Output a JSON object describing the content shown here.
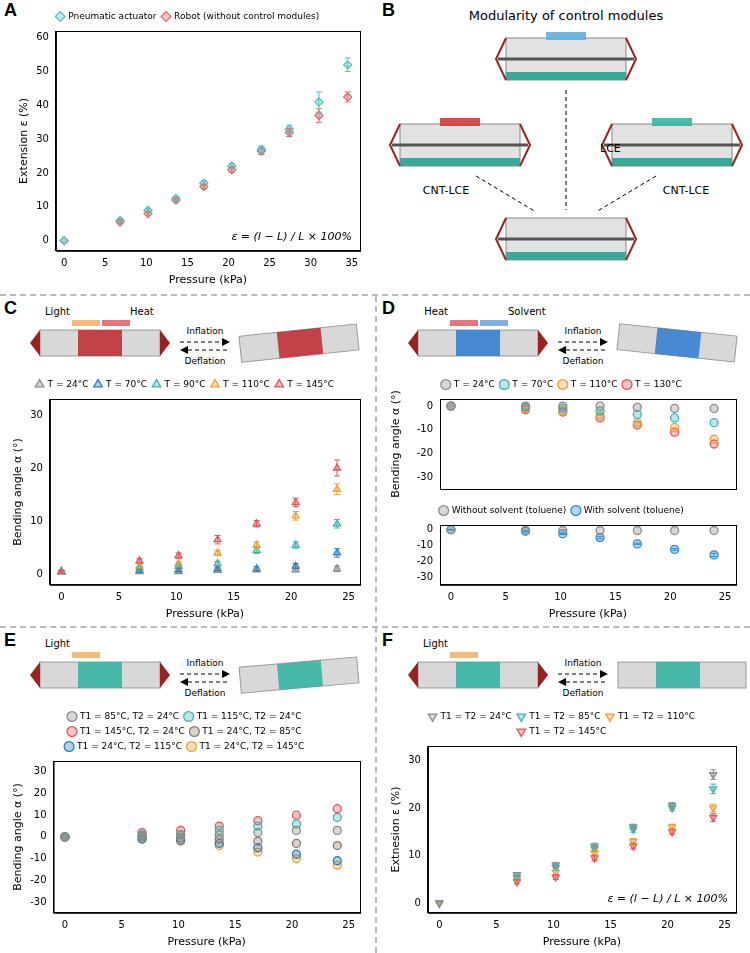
{
  "chart_data": [
    {
      "type": "scatter",
      "panel_label": "A",
      "x_label": "Pressure (kPa)",
      "y_label": "Extension ε (%)",
      "annotations": [
        "ε = (l − L) / L × 100%"
      ],
      "x": [
        0,
        6.8,
        10.2,
        13.6,
        17,
        20.4,
        24,
        27.4,
        31,
        34.5
      ],
      "xlim": [
        -1,
        36
      ],
      "xticks": [
        0,
        5,
        10,
        15,
        20,
        25,
        30,
        35
      ],
      "ylim": [
        -3,
        62
      ],
      "yticks": [
        0,
        10,
        20,
        30,
        40,
        50,
        60
      ],
      "grid": false,
      "legend": "top",
      "series": [
        {
          "name": "Pneumatic actuator",
          "color": "#4fc3c8",
          "marker": "diamond",
          "values": [
            0,
            6,
            9,
            12.5,
            17,
            22,
            27,
            33,
            41,
            52
          ],
          "errors": [
            0,
            0.5,
            0.5,
            0.5,
            0.7,
            0.8,
            1,
            1.2,
            3,
            2
          ]
        },
        {
          "name": "Robot (without control modules)",
          "color": "#e86a6a",
          "marker": "diamond",
          "values": [
            0,
            5.5,
            8,
            12,
            16,
            21,
            26.5,
            32,
            37,
            42.5
          ],
          "errors": [
            0,
            0.5,
            0.5,
            0.5,
            0.6,
            0.8,
            1,
            1.2,
            2,
            1.5
          ]
        }
      ]
    },
    {
      "type": "scatter",
      "panel_label": "C",
      "schematic_labels": [
        "Light",
        "Heat"
      ],
      "arrow_labels": [
        "Inflation",
        "Deflation"
      ],
      "x_label": "Pressure (kPa)",
      "y_label": "Bending angle α (°)",
      "x": [
        0,
        6.8,
        10.2,
        13.6,
        17,
        20.4,
        24
      ],
      "xlim": [
        -1,
        26
      ],
      "xticks": [
        0,
        5,
        10,
        15,
        20,
        25
      ],
      "ylim": [
        -2,
        33
      ],
      "yticks": [
        0,
        10,
        20,
        30
      ],
      "grid": false,
      "legend": "top",
      "series": [
        {
          "name": "T = 24°C",
          "color": "#8c8c8c",
          "marker": "triangle",
          "values": [
            0.5,
            0.5,
            0.5,
            0.7,
            0.8,
            0.8,
            1
          ],
          "errors": [
            0.2,
            0.2,
            0.2,
            0.3,
            0.3,
            0.3,
            0.5
          ]
        },
        {
          "name": "T = 70°C",
          "color": "#2a7fc1",
          "marker": "triangle",
          "values": [
            0.5,
            0.6,
            0.8,
            1,
            1,
            1.5,
            4
          ],
          "errors": [
            0.2,
            0.2,
            0.3,
            0.3,
            0.4,
            0.5,
            0.8
          ]
        },
        {
          "name": "T = 90°C",
          "color": "#3bb6b0",
          "marker": "triangle",
          "values": [
            0.5,
            1,
            1.5,
            2,
            4.5,
            5.5,
            9.5
          ],
          "errors": [
            0.2,
            0.3,
            0.3,
            0.4,
            0.6,
            0.6,
            0.8
          ]
        },
        {
          "name": "T = 110°C",
          "color": "#f0a030",
          "marker": "triangle",
          "values": [
            0.5,
            1.5,
            2,
            4,
            5.5,
            11,
            16
          ],
          "errors": [
            0.2,
            0.3,
            0.4,
            0.5,
            0.6,
            0.8,
            1
          ]
        },
        {
          "name": "T = 145°C",
          "color": "#e8525a",
          "marker": "triangle",
          "values": [
            0.5,
            2.5,
            3.5,
            6.5,
            9.5,
            13.5,
            20
          ],
          "errors": [
            0.2,
            0.4,
            0.5,
            0.8,
            0.6,
            0.8,
            1.5
          ]
        }
      ]
    },
    {
      "type": "scatter",
      "panel_label": "D",
      "schematic_labels": [
        "Heat",
        "Solvent"
      ],
      "arrow_labels": [
        "Inflation",
        "Deflation"
      ],
      "y_label": "Bending angle α (°)",
      "tick_labels": "y",
      "x": [
        0,
        6.8,
        10.2,
        13.6,
        17,
        20.4,
        24
      ],
      "xlim": [
        -1,
        26
      ],
      "xticks": [
        0,
        5,
        10,
        15,
        20,
        25
      ],
      "ylim": [
        -35,
        3
      ],
      "yticks": [
        -30,
        -20,
        -10,
        0
      ],
      "grid": false,
      "legend": "top",
      "series": [
        {
          "name": "T = 24°C",
          "color": "#8c8c8c",
          "marker": "circle",
          "values": [
            0,
            0,
            0,
            0,
            -0.5,
            -1,
            -1
          ]
        },
        {
          "name": "T = 70°C",
          "color": "#3bb6b0",
          "marker": "circle",
          "values": [
            0,
            -0.5,
            -1,
            -2,
            -3.5,
            -5,
            -7
          ]
        },
        {
          "name": "T = 110°C",
          "color": "#f0a030",
          "marker": "circle",
          "values": [
            0,
            -1,
            -2,
            -4,
            -7,
            -9,
            -14
          ]
        },
        {
          "name": "T = 130°C",
          "color": "#e8525a",
          "marker": "circle",
          "values": [
            0,
            -1.5,
            -2.5,
            -5,
            -8,
            -11,
            -16
          ]
        }
      ]
    },
    {
      "type": "scatter",
      "x_label": "Pressure (kPa)",
      "x": [
        0,
        6.8,
        10.2,
        13.6,
        17,
        20.4,
        24
      ],
      "xlim": [
        -1,
        26
      ],
      "xticks": [
        0,
        5,
        10,
        15,
        20,
        25
      ],
      "ylim": [
        -35,
        3
      ],
      "yticks": [
        -30,
        -20,
        -10,
        0
      ],
      "grid": false,
      "legend": "top",
      "series": [
        {
          "name": "Without solvent (toluene)",
          "color": "#8c8c8c",
          "marker": "circle",
          "values": [
            0,
            -0.3,
            -0.5,
            -0.5,
            -0.5,
            -0.5,
            -0.5
          ]
        },
        {
          "name": "With solvent (toluene)",
          "color": "#2a8fd0",
          "marker": "circle",
          "values": [
            0,
            -1,
            -2.5,
            -5,
            -9,
            -12.5,
            -16
          ],
          "errors": [
            0.2,
            0.4,
            0.5,
            0.8,
            0.5,
            0.6,
            1
          ]
        }
      ]
    },
    {
      "type": "scatter",
      "panel_label": "E",
      "schematic_labels": [
        "Light"
      ],
      "arrow_labels": [
        "Inflation",
        "Deflation"
      ],
      "x_label": "Pressure (kPa)",
      "y_label": "Bending angle α (°)",
      "x": [
        0,
        6.8,
        10.2,
        13.6,
        17,
        20.4,
        24
      ],
      "xlim": [
        -1,
        26
      ],
      "xticks": [
        0,
        5,
        10,
        15,
        20,
        25
      ],
      "ylim": [
        -35,
        35
      ],
      "yticks": [
        -30,
        -20,
        -10,
        0,
        10,
        20,
        30
      ],
      "grid": false,
      "legend": "top",
      "series": [
        {
          "name": "T1 = 85°C, T2 = 24°C",
          "color": "#8c8c8c",
          "marker": "circle",
          "values": [
            0,
            0.5,
            1,
            1,
            2,
            3,
            3
          ]
        },
        {
          "name": "T1 = 115°C, T2 = 24°C",
          "color": "#3bb6b0",
          "marker": "circle",
          "values": [
            0,
            1,
            1,
            3,
            5,
            6,
            9
          ]
        },
        {
          "name": "T1 = 145°C, T2 = 24°C",
          "color": "#e8525a",
          "marker": "circle",
          "values": [
            0,
            2,
            3,
            5,
            7.5,
            10,
            13
          ]
        },
        {
          "name": "T1 = 24°C, T2 = 85°C",
          "color": "#8a7a70",
          "marker": "circle",
          "values": [
            0,
            0,
            -0.5,
            -1,
            -2,
            -3,
            -4
          ]
        },
        {
          "name": "T1 = 24°C, T2 = 115°C",
          "color": "#2a7fc1",
          "marker": "circle",
          "values": [
            0,
            -1,
            -1.5,
            -3,
            -5,
            -8,
            -11
          ]
        },
        {
          "name": "T1 = 24°C, T2 = 145°C",
          "color": "#f0a030",
          "marker": "circle",
          "values": [
            0,
            -1,
            -2,
            -4,
            -7,
            -10,
            -13
          ]
        }
      ]
    },
    {
      "type": "scatter",
      "panel_label": "F",
      "schematic_labels": [
        "Light"
      ],
      "arrow_labels": [
        "Inflation",
        "Deflation"
      ],
      "x_label": "Pressure (kPa)",
      "y_label": "Extnesion ε (%)",
      "annotations": [
        "ε = (l − L) / L × 100%"
      ],
      "x": [
        0,
        6.8,
        10.2,
        13.6,
        17,
        20.4,
        24
      ],
      "xlim": [
        -1,
        26
      ],
      "xticks": [
        0,
        5,
        10,
        15,
        20,
        25
      ],
      "ylim": [
        -2,
        33
      ],
      "yticks": [
        0,
        10,
        20,
        30
      ],
      "grid": false,
      "legend": "top",
      "series": [
        {
          "name": "T1 = T2 = 24°C",
          "color": "#8c8c8c",
          "marker": "triangle_down",
          "values": [
            0,
            6,
            8,
            12,
            16,
            20.5,
            27
          ],
          "errors": [
            0,
            0.4,
            0.6,
            0.6,
            0.6,
            0.6,
            1
          ]
        },
        {
          "name": "T1 = T2 = 85°C",
          "color": "#3bb6b0",
          "marker": "triangle_down",
          "values": [
            0,
            5.5,
            7.5,
            11.5,
            15.5,
            20,
            24
          ],
          "errors": [
            0,
            0.4,
            0.6,
            0.6,
            0.6,
            0.6,
            1
          ]
        },
        {
          "name": "T1 = T2 = 110°C",
          "color": "#f0a030",
          "marker": "triangle_down",
          "values": [
            0,
            5,
            6.5,
            10.5,
            13,
            16,
            20
          ],
          "errors": [
            0,
            0.4,
            0.5,
            0.6,
            0.6,
            0.6,
            0.8
          ]
        },
        {
          "name": "T1 = T2 = 145°C",
          "color": "#e8525a",
          "marker": "triangle_down",
          "values": [
            0,
            4.5,
            5.5,
            9.5,
            12,
            15,
            18
          ],
          "errors": [
            0,
            0.4,
            0.5,
            0.6,
            0.6,
            0.6,
            0.8
          ]
        }
      ]
    }
  ],
  "diagram": {
    "panel_label": "B",
    "title": "Modularity of control modules",
    "labels": [
      "CNT-LCE",
      "LCE",
      "CNT-LCE"
    ]
  }
}
